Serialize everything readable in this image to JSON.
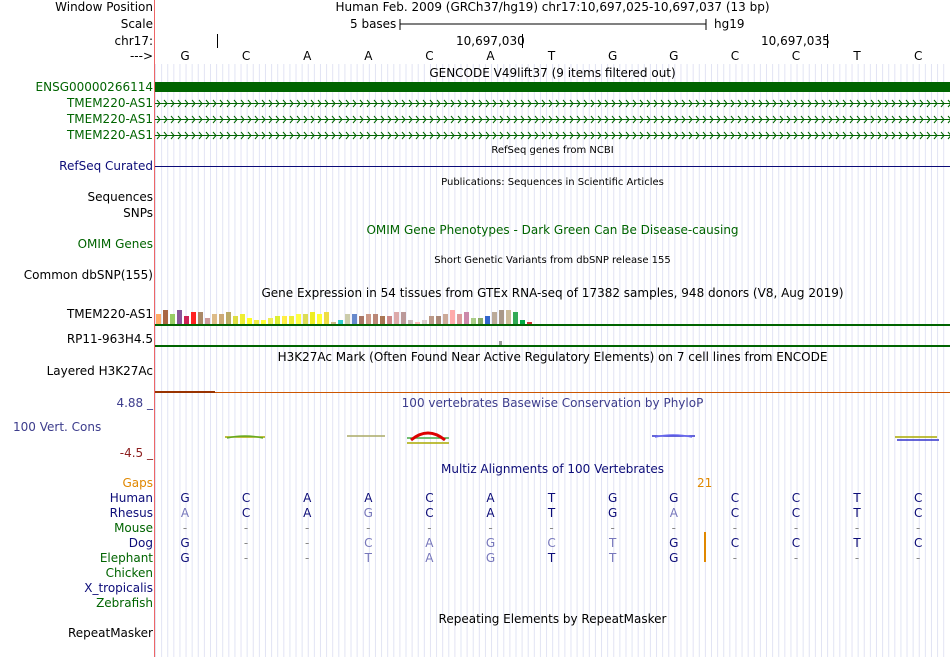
{
  "header": {
    "window_position_label": "Window Position",
    "window_position_value": "Human Feb. 2009 (GRCh37/hg19)   chr17:10,697,025-10,697,037 (13 bp)",
    "scale_label": "Scale",
    "scale_value": "5 bases",
    "scale_db": "hg19",
    "chrom_label": "chr17:",
    "coord1": "10,697,030",
    "coord2": "10,697,035",
    "strand_label": "--->"
  },
  "bases": [
    "G",
    "C",
    "A",
    "A",
    "C",
    "A",
    "T",
    "G",
    "G",
    "C",
    "C",
    "T",
    "C"
  ],
  "gencode": {
    "title": "GENCODE V49lift37 (9 items filtered out)",
    "items": [
      "ENSG00000266114",
      "TMEM220-AS1",
      "TMEM220-AS1",
      "TMEM220-AS1"
    ]
  },
  "refseq": {
    "label": "RefSeq Curated",
    "title": "RefSeq genes from NCBI"
  },
  "publications": {
    "label": "Sequences",
    "title": "Publications: Sequences in Scientific Articles"
  },
  "snps_label": "SNPs",
  "omim": {
    "label": "OMIM Genes",
    "title": "OMIM Gene Phenotypes - Dark Green Can Be Disease-causing"
  },
  "dbsnp": {
    "label": "Common dbSNP(155)",
    "title": "Short Genetic Variants from dbSNP release 155"
  },
  "gtex": {
    "title": "Gene Expression in 54 tissues from GTEx RNA-seq of 17382 samples, 948 donors (V8, Aug 2019)",
    "genes": [
      "TMEM220-AS1",
      "RP11-963H4.5"
    ],
    "bar_heights": [
      10,
      14,
      10,
      14,
      8,
      12,
      12,
      6,
      10,
      10,
      12,
      8,
      10,
      6,
      4,
      4,
      6,
      8,
      8,
      8,
      10,
      10,
      12,
      10,
      12,
      2,
      4,
      10,
      10,
      8,
      10,
      10,
      8,
      8,
      12,
      12,
      4,
      2,
      4,
      8,
      8,
      10,
      14,
      10,
      12,
      6,
      6,
      8,
      12,
      14,
      14,
      12,
      4,
      2
    ],
    "bar_colors": [
      "#ffaa66",
      "#aa6644",
      "#99cc66",
      "#885599",
      "#cc2255",
      "#ff2222",
      "#aa8866",
      "#cc9999",
      "#ddbb88",
      "#ccaa77",
      "#bbaa66",
      "#dddd44",
      "#eeee33",
      "#ffff22",
      "#eeee44",
      "#ffff33",
      "#eeee55",
      "#ddee33",
      "#ffee44",
      "#eeee33",
      "#ffff44",
      "#dddd55",
      "#eeee22",
      "#ffff33",
      "#eedd44",
      "#ccbb88",
      "#33cccc",
      "#ccccaa",
      "#6688cc",
      "#aa7766",
      "#cc9988",
      "#bb8877",
      "#aa7755",
      "#cc8888",
      "#ddaaaa",
      "#bb9999",
      "#ccbbbb",
      "#ffbbbb",
      "#ddcccc",
      "#bb9988",
      "#aa8877",
      "#ccaa99",
      "#ffaaaa",
      "#dd9999",
      "#cc88aa",
      "#aacc88",
      "#88aa66",
      "#3366cc",
      "#bbaa99",
      "#aa9988",
      "#ccbb99",
      "#33aa55",
      "#00aa44",
      "#cc3333"
    ]
  },
  "h3k27ac": {
    "label": "Layered H3K27Ac",
    "title": "H3K27Ac Mark (Often Found Near Active Regulatory Elements) on 7 cell lines from ENCODE"
  },
  "conservation": {
    "label": "100 Vert. Cons",
    "ymax": "4.88 _",
    "ymin": "-4.5 _",
    "title": "100 vertebrates Basewise Conservation by PhyloP"
  },
  "multiz": {
    "title": "Multiz Alignments of 100 Vertebrates",
    "gaps_label": "Gaps",
    "gap_count": "21",
    "species": [
      {
        "name": "Human",
        "seq": [
          "G",
          "C",
          "A",
          "A",
          "C",
          "A",
          "T",
          "G",
          "G",
          "C",
          "C",
          "T",
          "C"
        ]
      },
      {
        "name": "Rhesus",
        "seq": [
          "A",
          "C",
          "A",
          "G",
          "C",
          "A",
          "T",
          "G",
          "A",
          "C",
          "C",
          "T",
          "C"
        ]
      },
      {
        "name": "Mouse",
        "seq": [
          "-",
          "-",
          "-",
          "-",
          "-",
          "-",
          "-",
          "-",
          "-",
          "-",
          "-",
          "-",
          "-"
        ]
      },
      {
        "name": "Dog",
        "seq": [
          "G",
          "-",
          "-",
          "C",
          "A",
          "G",
          "C",
          "T",
          "G",
          "C",
          "C",
          "T",
          "C"
        ]
      },
      {
        "name": "Elephant",
        "seq": [
          "G",
          "-",
          "-",
          "T",
          "A",
          "G",
          "T",
          "T",
          "G",
          "-",
          "-",
          "-",
          "-"
        ]
      },
      {
        "name": "Chicken",
        "seq": []
      },
      {
        "name": "X_tropicalis",
        "seq": []
      },
      {
        "name": "Zebrafish",
        "seq": []
      }
    ]
  },
  "repeatmasker": {
    "label": "RepeatMasker",
    "title": "Repeating Elements by RepeatMasker"
  },
  "colors": {
    "gencode_green": "#006400",
    "refseq_navy": "#0c0c78",
    "omim_green": "#006400",
    "cons_blue": "#3c3c8c",
    "cons_red": "#8c1e1e",
    "gaps_orange": "#e08800",
    "h3k27ac_orange": "#cc5500"
  }
}
